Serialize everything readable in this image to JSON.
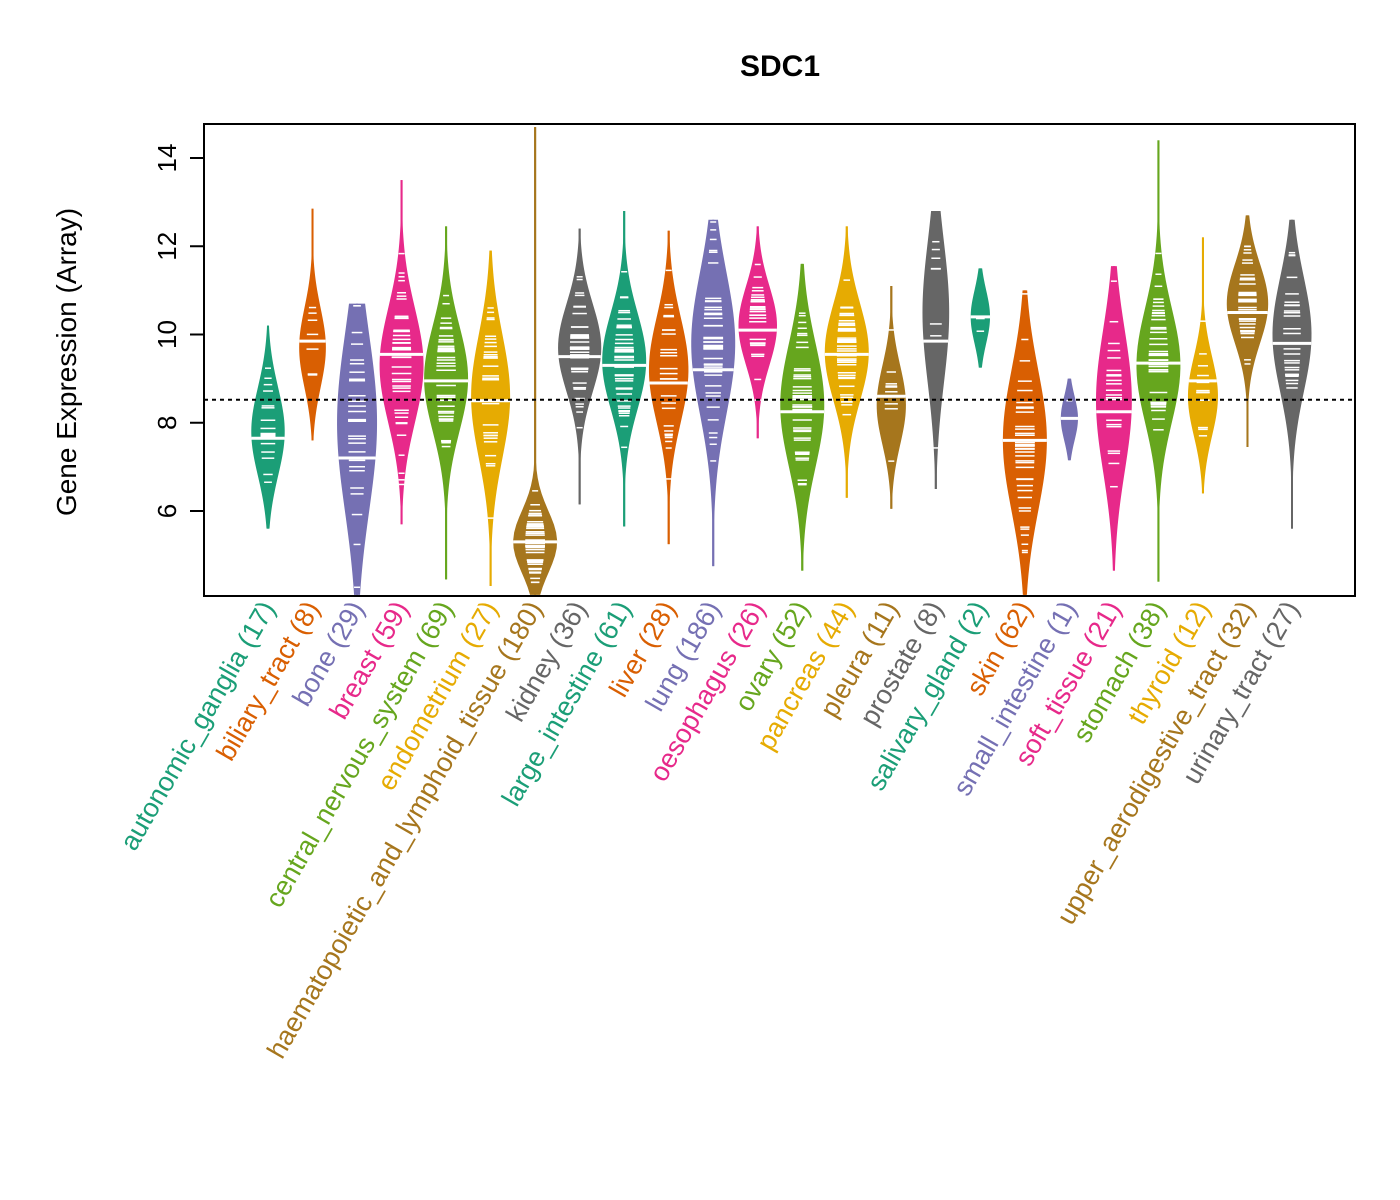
{
  "chart_data": {
    "type": "violin",
    "title": "SDC1",
    "xlabel": "",
    "ylabel": "Gene Expression (Array)",
    "ylim": [
      4.1,
      14.8
    ],
    "yticks": [
      6,
      8,
      10,
      12,
      14
    ],
    "reference_line": 8.52,
    "grid": false,
    "legend": "none",
    "categories": [
      {
        "name": "autonomic_ganglia",
        "n": 17,
        "color": "#1B9E77",
        "min": 5.6,
        "max": 10.2,
        "median": 7.65,
        "mode": 7.8,
        "spread": 1.0
      },
      {
        "name": "biliary_tract",
        "n": 8,
        "color": "#D95F02",
        "min": 7.6,
        "max": 12.85,
        "median": 9.85,
        "mode": 9.7,
        "spread": 0.9
      },
      {
        "name": "bone",
        "n": 29,
        "color": "#7570B3",
        "min": 4.1,
        "max": 10.7,
        "median": 7.2,
        "mode": 8.0,
        "spread": 2.0
      },
      {
        "name": "breast",
        "n": 59,
        "color": "#E7298A",
        "min": 5.7,
        "max": 13.5,
        "median": 9.55,
        "mode": 9.3,
        "spread": 1.3
      },
      {
        "name": "central_nervous_system",
        "n": 69,
        "color": "#66A61E",
        "min": 4.45,
        "max": 12.45,
        "median": 8.95,
        "mode": 9.0,
        "spread": 1.2
      },
      {
        "name": "endometrium",
        "n": 27,
        "color": "#E6AB02",
        "min": 4.3,
        "max": 11.9,
        "median": 8.5,
        "mode": 8.6,
        "spread": 1.4
      },
      {
        "name": "haematopoietic_and_lymphoid_tissue",
        "n": 180,
        "color": "#A6761D",
        "min": 4.1,
        "max": 14.7,
        "median": 5.3,
        "mode": 5.3,
        "spread": 0.7
      },
      {
        "name": "kidney",
        "n": 36,
        "color": "#666666",
        "min": 6.15,
        "max": 12.4,
        "median": 9.5,
        "mode": 9.7,
        "spread": 1.0
      },
      {
        "name": "large_intestine",
        "n": 61,
        "color": "#1B9E77",
        "min": 5.65,
        "max": 12.8,
        "median": 9.3,
        "mode": 9.4,
        "spread": 1.1
      },
      {
        "name": "liver",
        "n": 28,
        "color": "#D95F02",
        "min": 5.25,
        "max": 12.35,
        "median": 8.9,
        "mode": 9.2,
        "spread": 1.2
      },
      {
        "name": "lung",
        "n": 186,
        "color": "#7570B3",
        "min": 4.75,
        "max": 12.6,
        "median": 9.2,
        "mode": 9.8,
        "spread": 1.6
      },
      {
        "name": "oesophagus",
        "n": 26,
        "color": "#E7298A",
        "min": 7.65,
        "max": 12.45,
        "median": 10.1,
        "mode": 10.2,
        "spread": 0.9
      },
      {
        "name": "ovary",
        "n": 52,
        "color": "#66A61E",
        "min": 4.65,
        "max": 11.6,
        "median": 8.25,
        "mode": 8.4,
        "spread": 1.4
      },
      {
        "name": "pancreas",
        "n": 44,
        "color": "#E6AB02",
        "min": 6.3,
        "max": 12.45,
        "median": 9.55,
        "mode": 9.6,
        "spread": 1.1
      },
      {
        "name": "pleura",
        "n": 11,
        "color": "#A6761D",
        "min": 6.05,
        "max": 11.1,
        "median": 8.6,
        "mode": 8.4,
        "spread": 0.9
      },
      {
        "name": "prostate",
        "n": 8,
        "color": "#666666",
        "min": 6.5,
        "max": 12.8,
        "median": 9.85,
        "mode": 10.5,
        "spread": 1.6
      },
      {
        "name": "salivary_gland",
        "n": 2,
        "color": "#1B9E77",
        "min": 9.25,
        "max": 11.5,
        "median": 10.4,
        "mode": 10.4,
        "spread": 0.6
      },
      {
        "name": "skin",
        "n": 62,
        "color": "#D95F02",
        "min": 4.1,
        "max": 11.0,
        "median": 7.6,
        "mode": 7.6,
        "spread": 1.6
      },
      {
        "name": "small_intestine",
        "n": 1,
        "color": "#7570B3",
        "min": 7.15,
        "max": 9.0,
        "median": 8.1,
        "mode": 8.1,
        "spread": 0.5
      },
      {
        "name": "soft_tissue",
        "n": 21,
        "color": "#E7298A",
        "min": 4.65,
        "max": 11.55,
        "median": 8.25,
        "mode": 8.5,
        "spread": 1.6
      },
      {
        "name": "stomach",
        "n": 38,
        "color": "#66A61E",
        "min": 4.4,
        "max": 14.4,
        "median": 9.35,
        "mode": 9.3,
        "spread": 1.3
      },
      {
        "name": "thyroid",
        "n": 12,
        "color": "#E6AB02",
        "min": 6.4,
        "max": 12.2,
        "median": 8.95,
        "mode": 8.6,
        "spread": 0.9
      },
      {
        "name": "upper_aerodigestive_tract",
        "n": 32,
        "color": "#A6761D",
        "min": 7.45,
        "max": 12.7,
        "median": 10.5,
        "mode": 10.7,
        "spread": 0.9
      },
      {
        "name": "urinary_tract",
        "n": 27,
        "color": "#666666",
        "min": 5.6,
        "max": 12.6,
        "median": 9.8,
        "mode": 10.0,
        "spread": 1.3
      }
    ]
  }
}
